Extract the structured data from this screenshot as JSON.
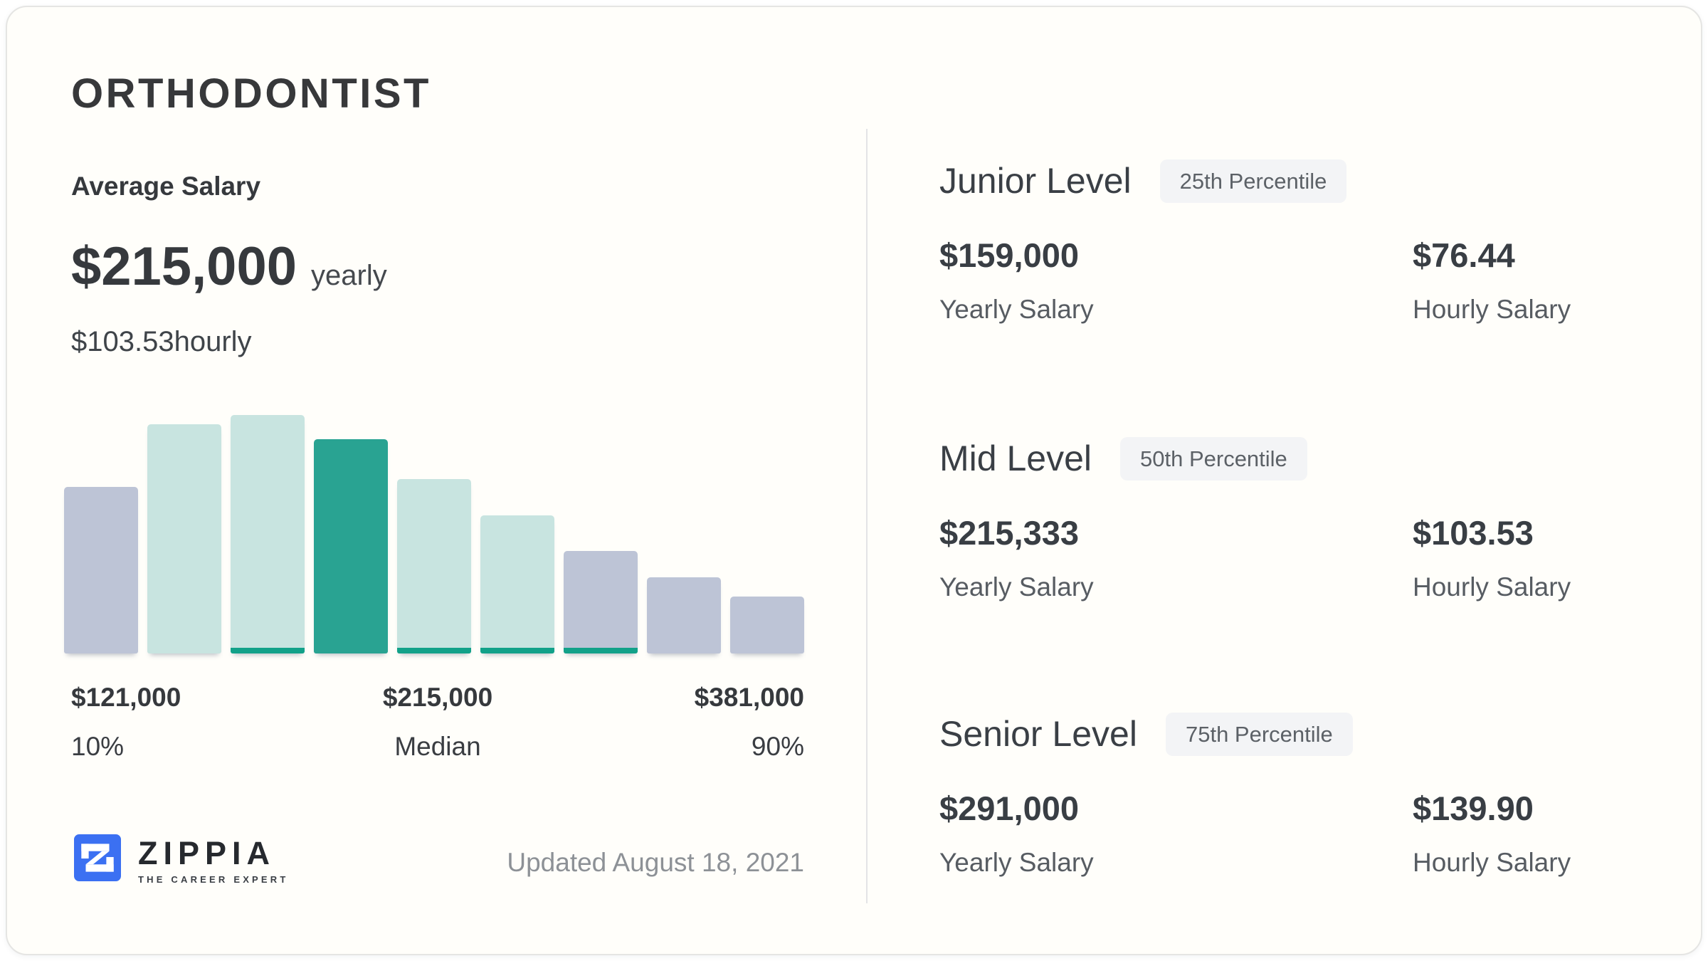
{
  "card": {
    "title": "ORTHODONTIST",
    "average": {
      "heading": "Average Salary",
      "yearly_value": "$215,000",
      "yearly_unit": "yearly",
      "hourly_value": "$103.53",
      "hourly_unit": "hourly"
    },
    "footer": {
      "brand": "ZIPPIA",
      "tagline": "THE CAREER EXPERT",
      "updated": "Updated August 18, 2021"
    },
    "levels": [
      {
        "name": "Junior Level",
        "badge": "25th Percentile",
        "yearly_value": "$159,000",
        "yearly_label": "Yearly Salary",
        "hourly_value": "$76.44",
        "hourly_label": "Hourly Salary"
      },
      {
        "name": "Mid Level",
        "badge": "50th Percentile",
        "yearly_value": "$215,333",
        "yearly_label": "Yearly Salary",
        "hourly_value": "$103.53",
        "hourly_label": "Hourly Salary"
      },
      {
        "name": "Senior Level",
        "badge": "75th Percentile",
        "yearly_value": "$291,000",
        "yearly_label": "Yearly Salary",
        "hourly_value": "$139.90",
        "hourly_label": "Hourly Salary"
      }
    ]
  },
  "chart_data": {
    "type": "bar",
    "title": "",
    "xlabel": "",
    "ylabel": "",
    "grid": false,
    "legend": false,
    "percentile_markers": [
      {
        "label": "$121,000",
        "sublabel": "10%",
        "align": "left"
      },
      {
        "label": "$215,000",
        "sublabel": "Median",
        "align": "center"
      },
      {
        "label": "$381,000",
        "sublabel": "90%",
        "align": "right"
      }
    ],
    "bars": [
      {
        "rel_height": 0.7,
        "style": "muted",
        "strip": false
      },
      {
        "rel_height": 0.96,
        "style": "light",
        "strip": false
      },
      {
        "rel_height": 1.0,
        "style": "light",
        "strip": true
      },
      {
        "rel_height": 0.9,
        "style": "accent",
        "strip": false
      },
      {
        "rel_height": 0.73,
        "style": "light",
        "strip": true
      },
      {
        "rel_height": 0.58,
        "style": "light",
        "strip": true
      },
      {
        "rel_height": 0.43,
        "style": "muted",
        "strip": true
      },
      {
        "rel_height": 0.32,
        "style": "muted",
        "strip": false
      },
      {
        "rel_height": 0.24,
        "style": "muted",
        "strip": false
      }
    ],
    "palette": {
      "muted": "#bdc4d6",
      "light": "#c8e4e0",
      "accent": "#29a392",
      "strip": "#12a189"
    }
  },
  "colors": {
    "brand_blue": "#3b70f2",
    "accent_teal": "#29a392",
    "badge_bg": "#f3f4f6",
    "divider": "#e3e4e6"
  }
}
